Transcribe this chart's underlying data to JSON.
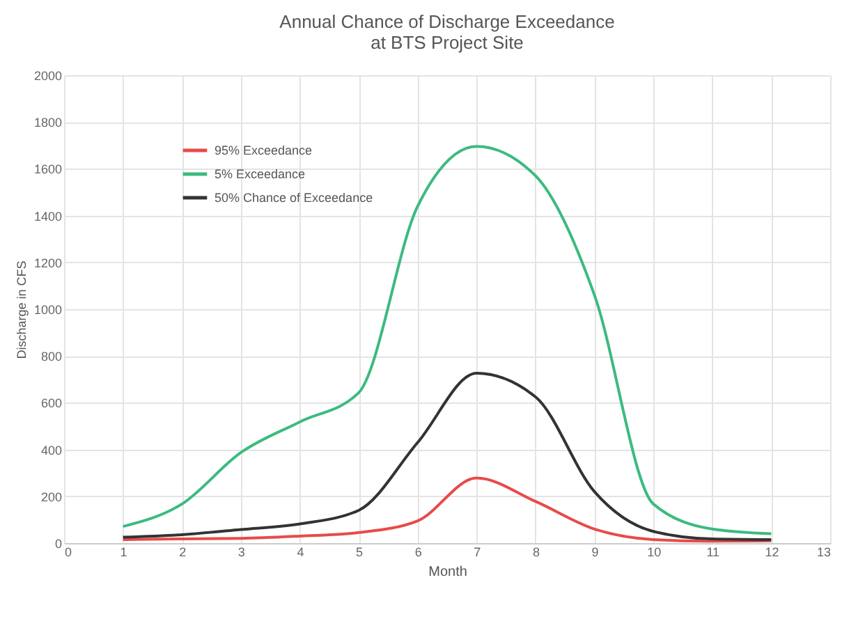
{
  "chart_data": {
    "type": "line",
    "title": "Annual Chance of Discharge Exceedance\nat BTS Project Site",
    "xlabel": "Month",
    "ylabel": "Discharge in CFS",
    "x": [
      1,
      2,
      3,
      4,
      5,
      6,
      7,
      8,
      9,
      10,
      11,
      12
    ],
    "series": [
      {
        "name": "95% Exceedance",
        "color": "#e84a4a",
        "values": [
          15,
          18,
          20,
          30,
          45,
          95,
          278,
          178,
          60,
          15,
          8,
          10
        ]
      },
      {
        "name": "5% Exceedance",
        "color": "#3dba80",
        "values": [
          71,
          167,
          387,
          518,
          643,
          1440,
          1696,
          1570,
          1060,
          167,
          60,
          40
        ]
      },
      {
        "name": "50% Chance of Exceedance",
        "color": "#333333",
        "values": [
          25,
          36,
          58,
          82,
          140,
          430,
          726,
          625,
          220,
          50,
          18,
          15
        ]
      }
    ],
    "xlim": [
      0,
      13
    ],
    "xticks": [
      0,
      1,
      2,
      3,
      4,
      5,
      6,
      7,
      8,
      9,
      10,
      11,
      12,
      13
    ],
    "ylim": [
      0,
      2000
    ],
    "yticks": [
      0,
      200,
      400,
      600,
      800,
      1000,
      1200,
      1400,
      1600,
      1800,
      2000
    ],
    "grid": true,
    "legend": "top left",
    "marker": "none",
    "line_style": "solid"
  }
}
